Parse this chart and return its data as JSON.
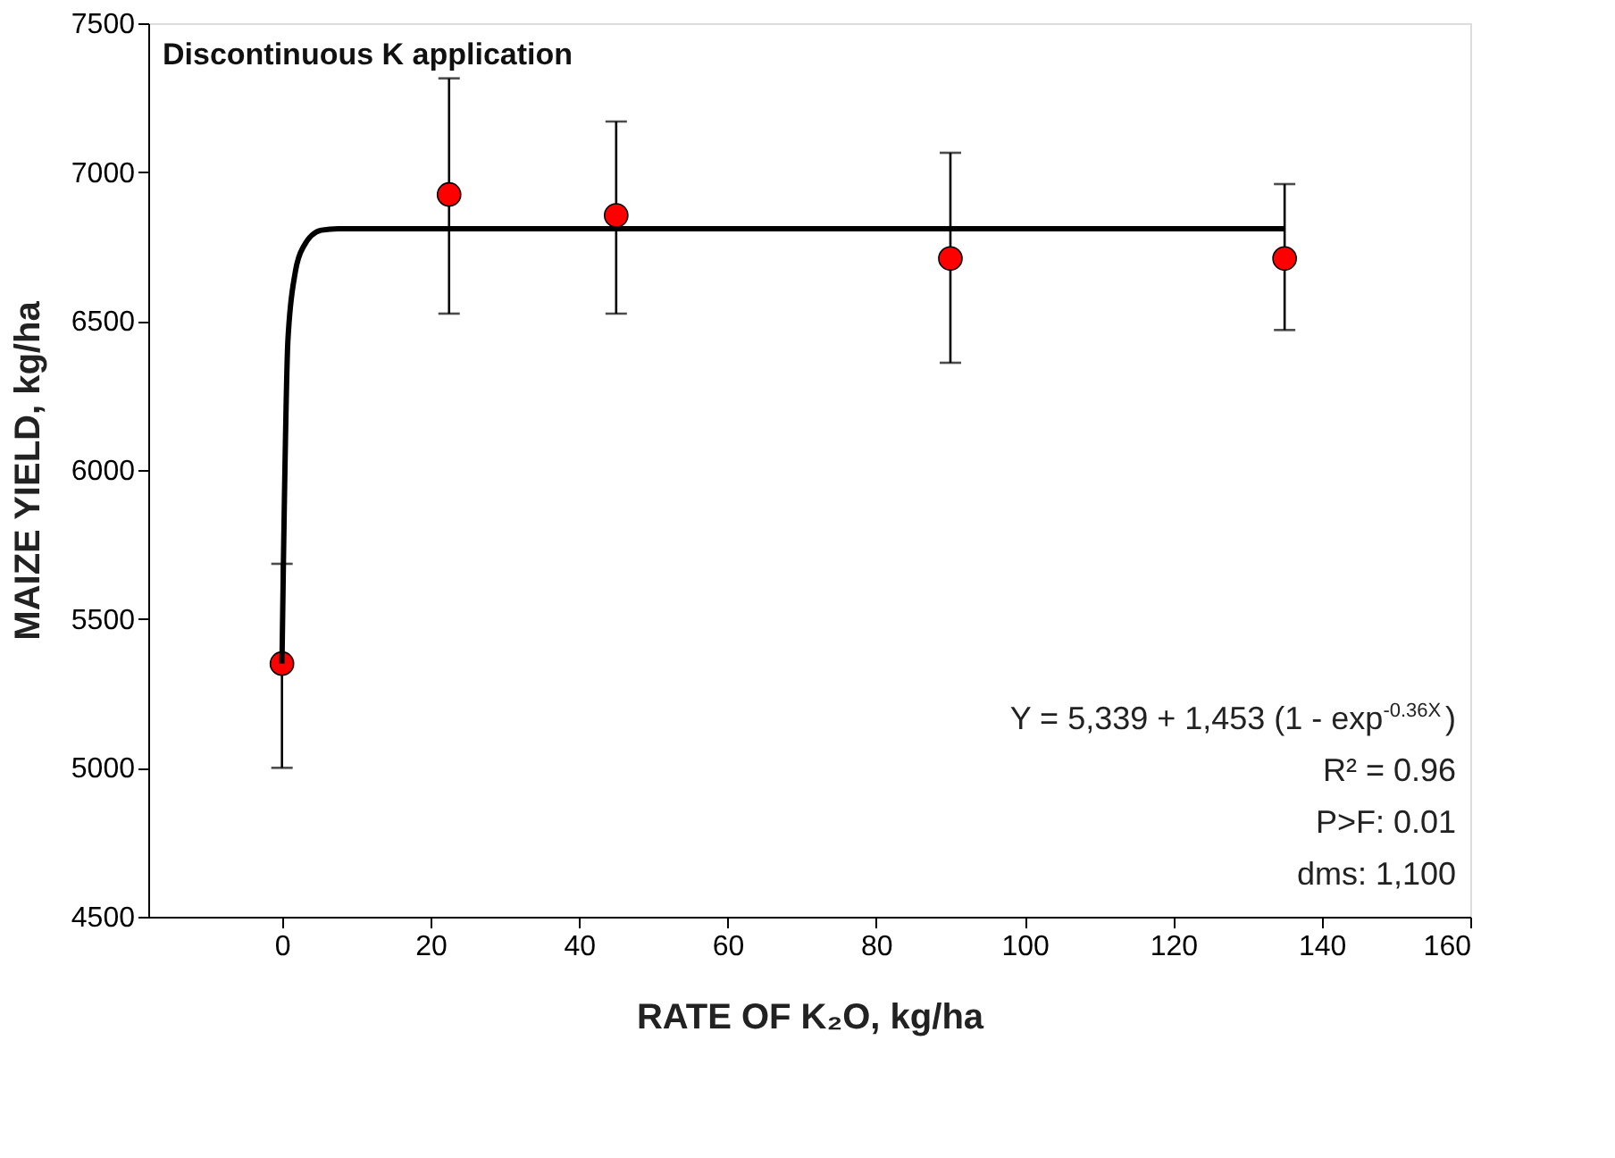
{
  "chart_data": {
    "type": "scatter",
    "title": "Discontinuous K application",
    "xlabel": "RATE OF K₂O, kg/ha",
    "ylabel": "MAIZE YIELD, kg/ha",
    "x": [
      0,
      22.5,
      45,
      90,
      135
    ],
    "series": [
      {
        "color": "#ff0000",
        "marker": "circle",
        "values": [
          5350,
          6925,
          6855,
          6710,
          6710
        ],
        "errors": [
          [
            5000,
            5685
          ],
          [
            6525,
            7315
          ],
          [
            6525,
            7170
          ],
          [
            6360,
            7065
          ],
          [
            6470,
            6960
          ]
        ]
      },
      {
        "type": "line",
        "color": "#000000",
        "marker": "none",
        "line_style": "solid",
        "x": [
          0,
          0.2,
          0.8,
          1.8,
          2.9,
          5.3,
          7.6,
          135
        ],
        "values": [
          5350,
          5695,
          6435,
          6665,
          6750,
          6805,
          6810,
          6810
        ]
      }
    ],
    "xlim": [
      -18,
      160
    ],
    "xticks": [
      0,
      20,
      40,
      60,
      80,
      100,
      120,
      140,
      160
    ],
    "ylim": [
      4500,
      7500
    ],
    "yticks": [
      4500,
      5000,
      5500,
      6000,
      6500,
      7000,
      7500
    ],
    "grid": false,
    "annotations": [
      "Y = 5,339 + 1,453 (1 - exp$^{-0.36X}$)",
      "R² = 0.96",
      "P>F: 0.01",
      "dms: 1,100"
    ]
  }
}
